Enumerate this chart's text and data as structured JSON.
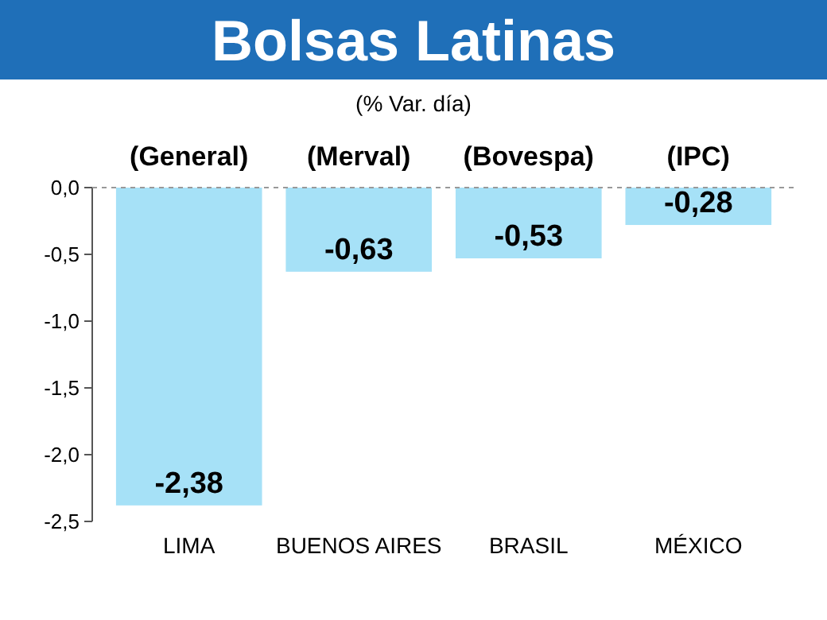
{
  "chart_data": {
    "type": "bar",
    "title": "Bolsas Latinas",
    "subtitle": "(% Var. día)",
    "categories": [
      "LIMA",
      "BUENOS AIRES",
      "BRASIL",
      "MÉXICO"
    ],
    "values": [
      -2.38,
      -0.63,
      -0.53,
      -0.28
    ],
    "value_labels": [
      "-2,38",
      "-0,63",
      "-0,53",
      "-0,28"
    ],
    "color": "#a6e1f7",
    "annotations": [
      "(General)",
      "(Merval)",
      "(Bovespa)",
      "(IPC)"
    ],
    "ylim": [
      -2.5,
      0
    ],
    "yticks": [
      {
        "value": 0,
        "label": "0,0"
      },
      {
        "value": -0.5,
        "label": "-0,5"
      },
      {
        "value": -1,
        "label": "-1,0"
      },
      {
        "value": -1.5,
        "label": "-1,5"
      },
      {
        "value": -2,
        "label": "-2,0"
      },
      {
        "value": -2.5,
        "label": "-2,5"
      }
    ],
    "grid": false
  }
}
